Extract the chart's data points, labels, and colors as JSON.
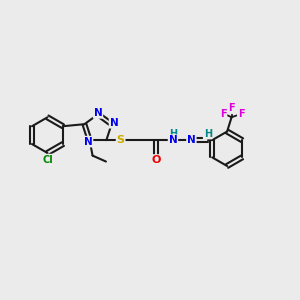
{
  "background_color": "#ebebeb",
  "bond_color": "#1a1a1a",
  "atom_colors": {
    "N": "#0000ee",
    "S": "#ccaa00",
    "O": "#ee0000",
    "Cl": "#008800",
    "F": "#dd00dd",
    "C": "#1a1a1a",
    "H": "#008888"
  },
  "figsize": [
    3.0,
    3.0
  ],
  "dpi": 100
}
